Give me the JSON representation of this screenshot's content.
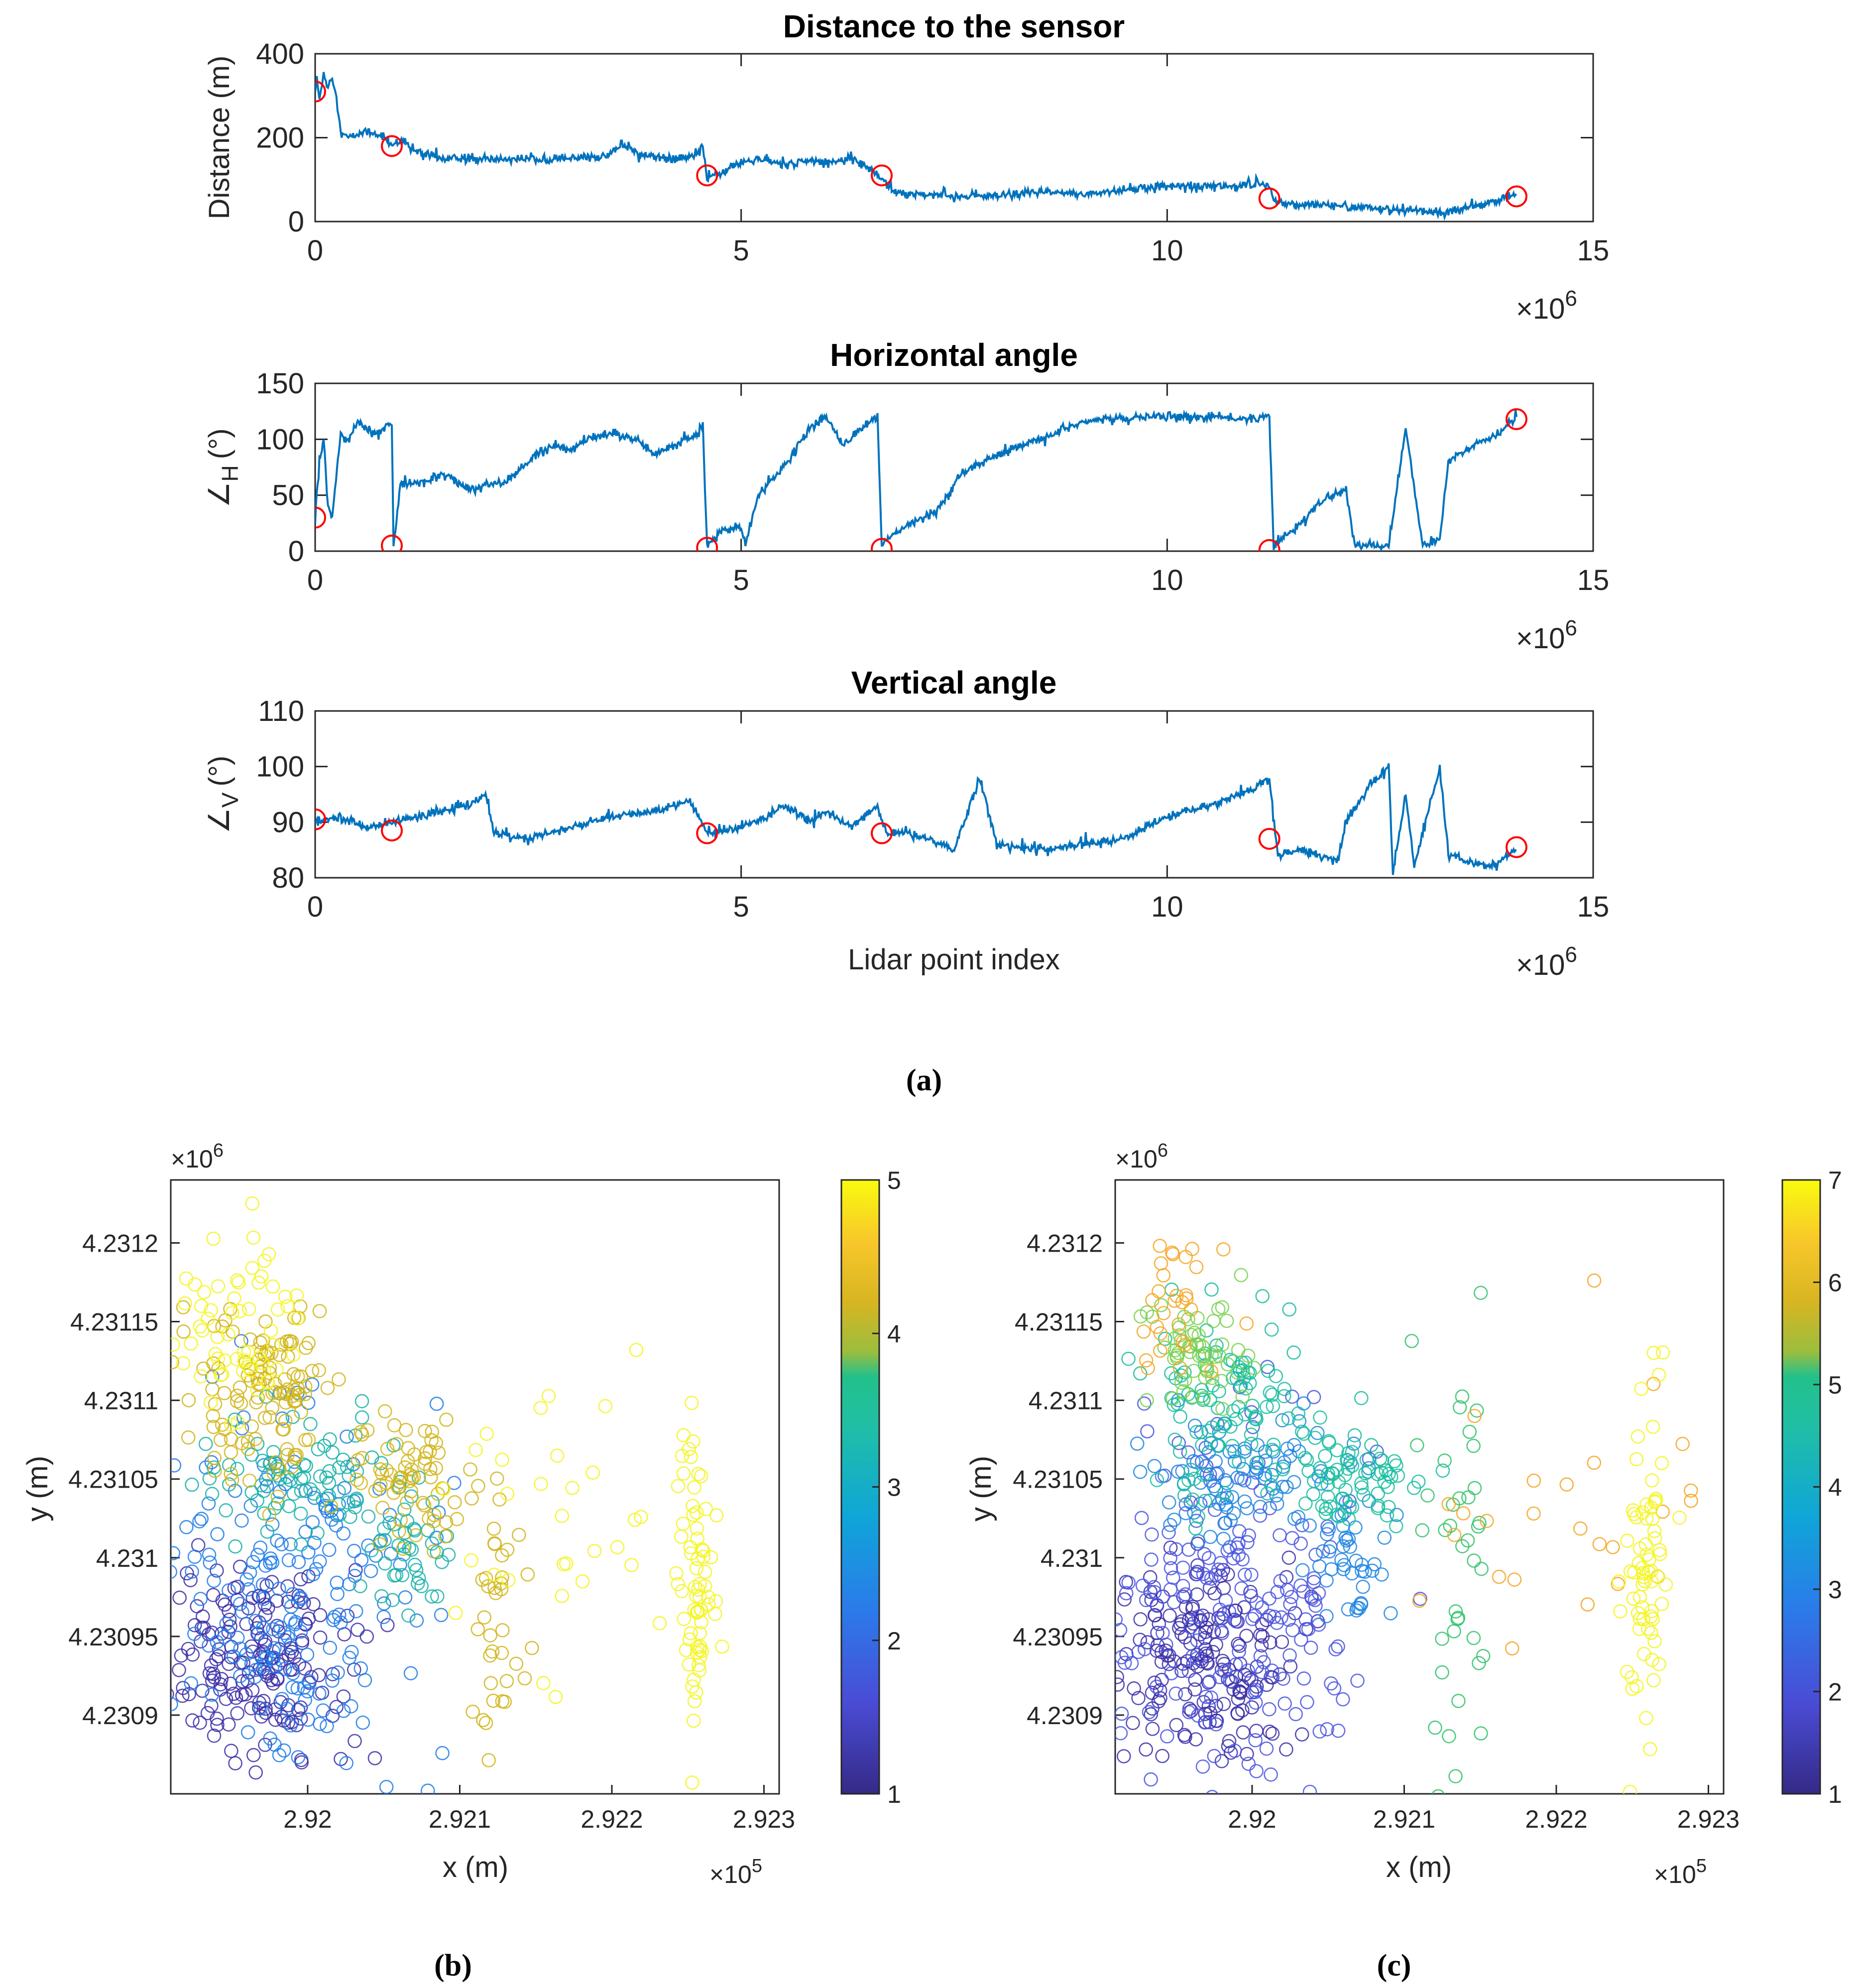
{
  "chart_data": [
    {
      "id": "distance",
      "type": "line",
      "title": "Distance to the sensor",
      "xlabel": "",
      "ylabel": "Distance (m)",
      "xlim": [
        0,
        15
      ],
      "ylim": [
        0,
        400
      ],
      "xticks": [
        "0",
        "5",
        "10",
        "15"
      ],
      "yticks": [
        "0",
        "200",
        "400"
      ],
      "x_multiplier": "×10",
      "x_multiplier_exp": "6",
      "series_color": "#0072BD",
      "marker_color": "#FF0000",
      "series": [
        {
          "name": "distance",
          "x": [
            0,
            0.02,
            0.05,
            0.1,
            0.15,
            0.2,
            0.25,
            0.3,
            0.4,
            0.6,
            0.8,
            0.9,
            1.0,
            1.2,
            1.4,
            1.5,
            1.8,
            2.0,
            2.5,
            3.0,
            3.4,
            3.6,
            3.8,
            4.0,
            4.3,
            4.5,
            4.55,
            4.6,
            4.7,
            5.0,
            5.2,
            5.5,
            5.8,
            6.0,
            6.3,
            6.5,
            6.6,
            6.7,
            6.8,
            7.2,
            7.6,
            8.0,
            8.5,
            9.0,
            9.5,
            10.0,
            10.5,
            11.0,
            11.2,
            11.25,
            11.5,
            12.0,
            12.5,
            13.0,
            13.3,
            13.5,
            13.8,
            14.1
          ],
          "y": [
            310,
            340,
            290,
            355,
            320,
            350,
            300,
            210,
            200,
            215,
            205,
            180,
            195,
            165,
            160,
            150,
            150,
            148,
            150,
            150,
            155,
            185,
            160,
            155,
            150,
            160,
            180,
            105,
            110,
            140,
            150,
            135,
            145,
            140,
            150,
            130,
            110,
            95,
            70,
            65,
            60,
            60,
            70,
            65,
            75,
            85,
            85,
            85,
            90,
            50,
            40,
            38,
            30,
            25,
            20,
            35,
            45,
            65
          ]
        },
        {
          "name": "change points",
          "x": [
            0.0,
            0.9,
            4.6,
            6.65,
            11.2,
            14.1
          ],
          "y": [
            310,
            180,
            110,
            110,
            55,
            60
          ]
        }
      ]
    },
    {
      "id": "horizontal",
      "type": "line",
      "title": "Horizontal angle",
      "xlabel": "",
      "ylabel_symbol": "∠",
      "ylabel_sub": "H",
      "ylabel_unit": "(°)",
      "xlim": [
        0,
        15
      ],
      "ylim": [
        0,
        150
      ],
      "xticks": [
        "0",
        "5",
        "10",
        "15"
      ],
      "yticks": [
        "0",
        "50",
        "100",
        "150"
      ],
      "x_multiplier": "×10",
      "x_multiplier_exp": "6",
      "series_color": "#0072BD",
      "marker_color": "#FF0000",
      "series": [
        {
          "name": "horizontal angle",
          "x": [
            0,
            0.05,
            0.1,
            0.15,
            0.2,
            0.3,
            0.4,
            0.5,
            0.6,
            0.7,
            0.8,
            0.9,
            0.92,
            1.0,
            1.2,
            1.5,
            1.8,
            2.0,
            2.2,
            2.5,
            2.8,
            3.0,
            3.2,
            3.5,
            3.8,
            4.0,
            4.2,
            4.4,
            4.55,
            4.6,
            4.8,
            5.0,
            5.05,
            5.2,
            5.5,
            5.8,
            6.0,
            6.2,
            6.4,
            6.6,
            6.65,
            6.7,
            7.0,
            7.3,
            7.6,
            8.0,
            8.5,
            9.0,
            9.5,
            10.0,
            10.5,
            11.0,
            11.2,
            11.25,
            11.5,
            11.8,
            12.1,
            12.2,
            12.6,
            12.8,
            13.0,
            13.2,
            13.3,
            13.6,
            13.9,
            14.1
          ],
          "y": [
            30,
            80,
            100,
            40,
            30,
            105,
            100,
            115,
            110,
            105,
            110,
            115,
            5,
            60,
            60,
            70,
            55,
            60,
            60,
            80,
            95,
            90,
            100,
            105,
            100,
            85,
            95,
            100,
            110,
            5,
            20,
            20,
            5,
            50,
            75,
            110,
            120,
            95,
            110,
            120,
            5,
            10,
            25,
            35,
            70,
            85,
            100,
            115,
            120,
            120,
            120,
            118,
            120,
            5,
            20,
            45,
            55,
            5,
            5,
            110,
            5,
            10,
            80,
            95,
            105,
            120
          ]
        },
        {
          "name": "change points",
          "x": [
            0.0,
            0.9,
            4.6,
            6.65,
            11.2,
            14.1
          ],
          "y": [
            30,
            5,
            3,
            2,
            1,
            118
          ]
        }
      ]
    },
    {
      "id": "vertical",
      "type": "line",
      "title": "Vertical angle",
      "xlabel": "Lidar point index",
      "ylabel_symbol": "∠",
      "ylabel_sub": "V",
      "ylabel_unit": "(°)",
      "xlim": [
        0,
        15
      ],
      "ylim": [
        80,
        110
      ],
      "xticks": [
        "0",
        "5",
        "10",
        "15"
      ],
      "yticks": [
        "80",
        "90",
        "100",
        "110"
      ],
      "x_multiplier": "×10",
      "x_multiplier_exp": "6",
      "series_color": "#0072BD",
      "marker_color": "#FF0000",
      "series": [
        {
          "name": "vertical angle",
          "x": [
            0,
            0.3,
            0.6,
            0.9,
            1.2,
            1.5,
            1.8,
            2.0,
            2.1,
            2.5,
            3.0,
            3.5,
            4.0,
            4.4,
            4.6,
            5.0,
            5.3,
            5.5,
            5.8,
            6.0,
            6.3,
            6.6,
            6.7,
            7.0,
            7.5,
            7.8,
            8.0,
            8.5,
            9.0,
            9.5,
            10.0,
            10.5,
            11.0,
            11.2,
            11.3,
            11.6,
            12.0,
            12.1,
            12.4,
            12.6,
            12.65,
            12.8,
            12.9,
            13.2,
            13.3,
            13.5,
            13.8,
            14.1
          ],
          "y": [
            90,
            91,
            89,
            90,
            91,
            92,
            93,
            95,
            88,
            87,
            89,
            91,
            92,
            94,
            88,
            89,
            91,
            93,
            90,
            92,
            89,
            93,
            88,
            88,
            85,
            98,
            86,
            85,
            86,
            87,
            91,
            93,
            96,
            98,
            84,
            85,
            83,
            90,
            97,
            100,
            81,
            95,
            82,
            100,
            84,
            83,
            82,
            85
          ]
        },
        {
          "name": "change points",
          "x": [
            0.0,
            0.9,
            4.6,
            6.65,
            11.2,
            14.1
          ],
          "y": [
            90.5,
            88.5,
            88,
            88,
            87,
            85.5
          ]
        }
      ]
    },
    {
      "id": "scatter_b",
      "type": "scatter",
      "caption": "(b)",
      "xlabel": "x (m)",
      "ylabel": "y (m)",
      "xlim": [
        2.9191,
        2.9231
      ],
      "ylim": [
        4.23085,
        4.23124
      ],
      "xticks": [
        "2.92",
        "2.921",
        "2.922",
        "2.923"
      ],
      "yticks": [
        "4.2309",
        "4.23095",
        "4.231",
        "4.23105",
        "4.2311",
        "4.23115",
        "4.2312"
      ],
      "x_multiplier": "×10",
      "x_multiplier_exp": "5",
      "y_multiplier": "×10",
      "y_multiplier_exp": "6",
      "colorbar_range": [
        1,
        5
      ],
      "colorbar_ticks": [
        "1",
        "2",
        "3",
        "4",
        "5"
      ],
      "clusters": [
        {
          "label": 1,
          "x": 2.91968,
          "y": 4.230935,
          "n": 180,
          "sx": 0.00028,
          "sy": 3e-05,
          "color": "#3B2FA8"
        },
        {
          "label": 2,
          "x": 2.91985,
          "y": 4.23097,
          "n": 200,
          "sx": 0.0004,
          "sy": 6e-05,
          "color": "#1E7BE8"
        },
        {
          "label": 3,
          "x": 2.91995,
          "y": 4.23105,
          "n": 80,
          "sx": 0.00035,
          "sy": 2e-05,
          "color": "#17B2A8"
        },
        {
          "label": 3,
          "x": 2.92065,
          "y": 4.231,
          "n": 40,
          "sx": 0.00012,
          "sy": 2e-05,
          "color": "#17B2A8"
        },
        {
          "label": 4,
          "x": 2.91975,
          "y": 4.2311,
          "n": 120,
          "sx": 0.00025,
          "sy": 3e-05,
          "color": "#D1B51A"
        },
        {
          "label": 4,
          "x": 2.9207,
          "y": 4.23105,
          "n": 70,
          "sx": 0.00022,
          "sy": 2e-05,
          "color": "#D1B51A"
        },
        {
          "label": 4,
          "x": 2.92125,
          "y": 4.230965,
          "n": 35,
          "sx": 8e-05,
          "sy": 4e-05,
          "color": "#D1B51A"
        },
        {
          "label": 5,
          "x": 2.91955,
          "y": 4.231145,
          "n": 60,
          "sx": 0.0002,
          "sy": 3e-05,
          "color": "#F5F523"
        },
        {
          "label": 5,
          "x": 2.92255,
          "y": 4.230985,
          "n": 70,
          "sx": 6e-05,
          "sy": 5e-05,
          "color": "#F5F523"
        },
        {
          "label": 5,
          "x": 2.92165,
          "y": 4.23103,
          "n": 30,
          "sx": 0.00035,
          "sy": 6e-05,
          "color": "#F5F523"
        }
      ]
    },
    {
      "id": "scatter_c",
      "type": "scatter",
      "caption": "(c)",
      "xlabel": "x (m)",
      "ylabel": "y (m)",
      "xlim": [
        2.9191,
        2.9231
      ],
      "ylim": [
        4.23085,
        4.23124
      ],
      "xticks": [
        "2.92",
        "2.921",
        "2.922",
        "2.923"
      ],
      "yticks": [
        "4.2309",
        "4.23095",
        "4.231",
        "4.23105",
        "4.2311",
        "4.23115",
        "4.2312"
      ],
      "x_multiplier": "×10",
      "x_multiplier_exp": "5",
      "y_multiplier": "×10",
      "y_multiplier_exp": "6",
      "colorbar_range": [
        1,
        7
      ],
      "colorbar_ticks": [
        "1",
        "2",
        "3",
        "4",
        "5",
        "6",
        "7"
      ],
      "clusters": [
        {
          "label": 1,
          "x": 2.91968,
          "y": 4.230935,
          "n": 180,
          "sx": 0.00028,
          "sy": 3e-05,
          "color": "#3B2FA8"
        },
        {
          "label": 2,
          "x": 2.91985,
          "y": 4.23097,
          "n": 200,
          "sx": 0.0004,
          "sy": 6e-05,
          "color": "#4A55E0"
        },
        {
          "label": 3,
          "x": 2.91995,
          "y": 4.23105,
          "n": 90,
          "sx": 0.00035,
          "sy": 2e-05,
          "color": "#1E85E0"
        },
        {
          "label": 3,
          "x": 2.92065,
          "y": 4.231,
          "n": 40,
          "sx": 0.00012,
          "sy": 2e-05,
          "color": "#1E85E0"
        },
        {
          "label": 4,
          "x": 2.91985,
          "y": 4.231095,
          "n": 100,
          "sx": 0.00025,
          "sy": 3e-05,
          "color": "#18BDA0"
        },
        {
          "label": 4,
          "x": 2.9207,
          "y": 4.23105,
          "n": 70,
          "sx": 0.00022,
          "sy": 2e-05,
          "color": "#18BDA0"
        },
        {
          "label": 5,
          "x": 2.91965,
          "y": 4.23113,
          "n": 60,
          "sx": 0.0002,
          "sy": 2e-05,
          "color": "#7AD151"
        },
        {
          "label": 5,
          "x": 2.92135,
          "y": 4.23099,
          "n": 40,
          "sx": 0.00015,
          "sy": 6e-05,
          "color": "#33C26B"
        },
        {
          "label": 6,
          "x": 2.91955,
          "y": 4.23116,
          "n": 30,
          "sx": 0.00018,
          "sy": 3e-05,
          "color": "#F5A623"
        },
        {
          "label": 6,
          "x": 2.92205,
          "y": 4.23103,
          "n": 25,
          "sx": 0.00045,
          "sy": 6e-05,
          "color": "#F5A623"
        },
        {
          "label": 7,
          "x": 2.92258,
          "y": 4.230985,
          "n": 70,
          "sx": 6e-05,
          "sy": 5e-05,
          "color": "#F5F523"
        }
      ]
    }
  ],
  "captions": {
    "a": "(a)",
    "b": "(b)",
    "c": "(c)"
  }
}
